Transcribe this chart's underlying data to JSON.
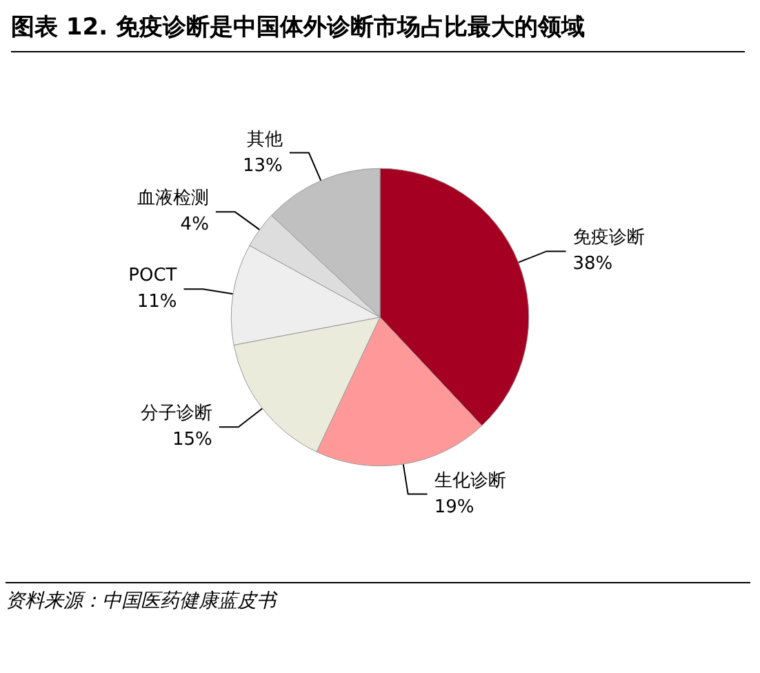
{
  "chart_data": {
    "type": "pie",
    "title": "图表 12. 免疫诊断是中国体外诊断市场占比最大的领域",
    "categories": [
      "免疫诊断",
      "生化诊断",
      "分子诊断",
      "POCT",
      "血液检测",
      "其他"
    ],
    "values": [
      38,
      19,
      15,
      11,
      4,
      13
    ],
    "value_labels": [
      "38%",
      "19%",
      "15%",
      "11%",
      "4%",
      "13%"
    ],
    "colors": [
      "#a50021",
      "#ff9999",
      "#ebebdc",
      "#eeeeee",
      "#dddddd",
      "#c0c0c0"
    ],
    "annotations": [
      "资料来源：中国医药健康蓝皮书"
    ]
  }
}
